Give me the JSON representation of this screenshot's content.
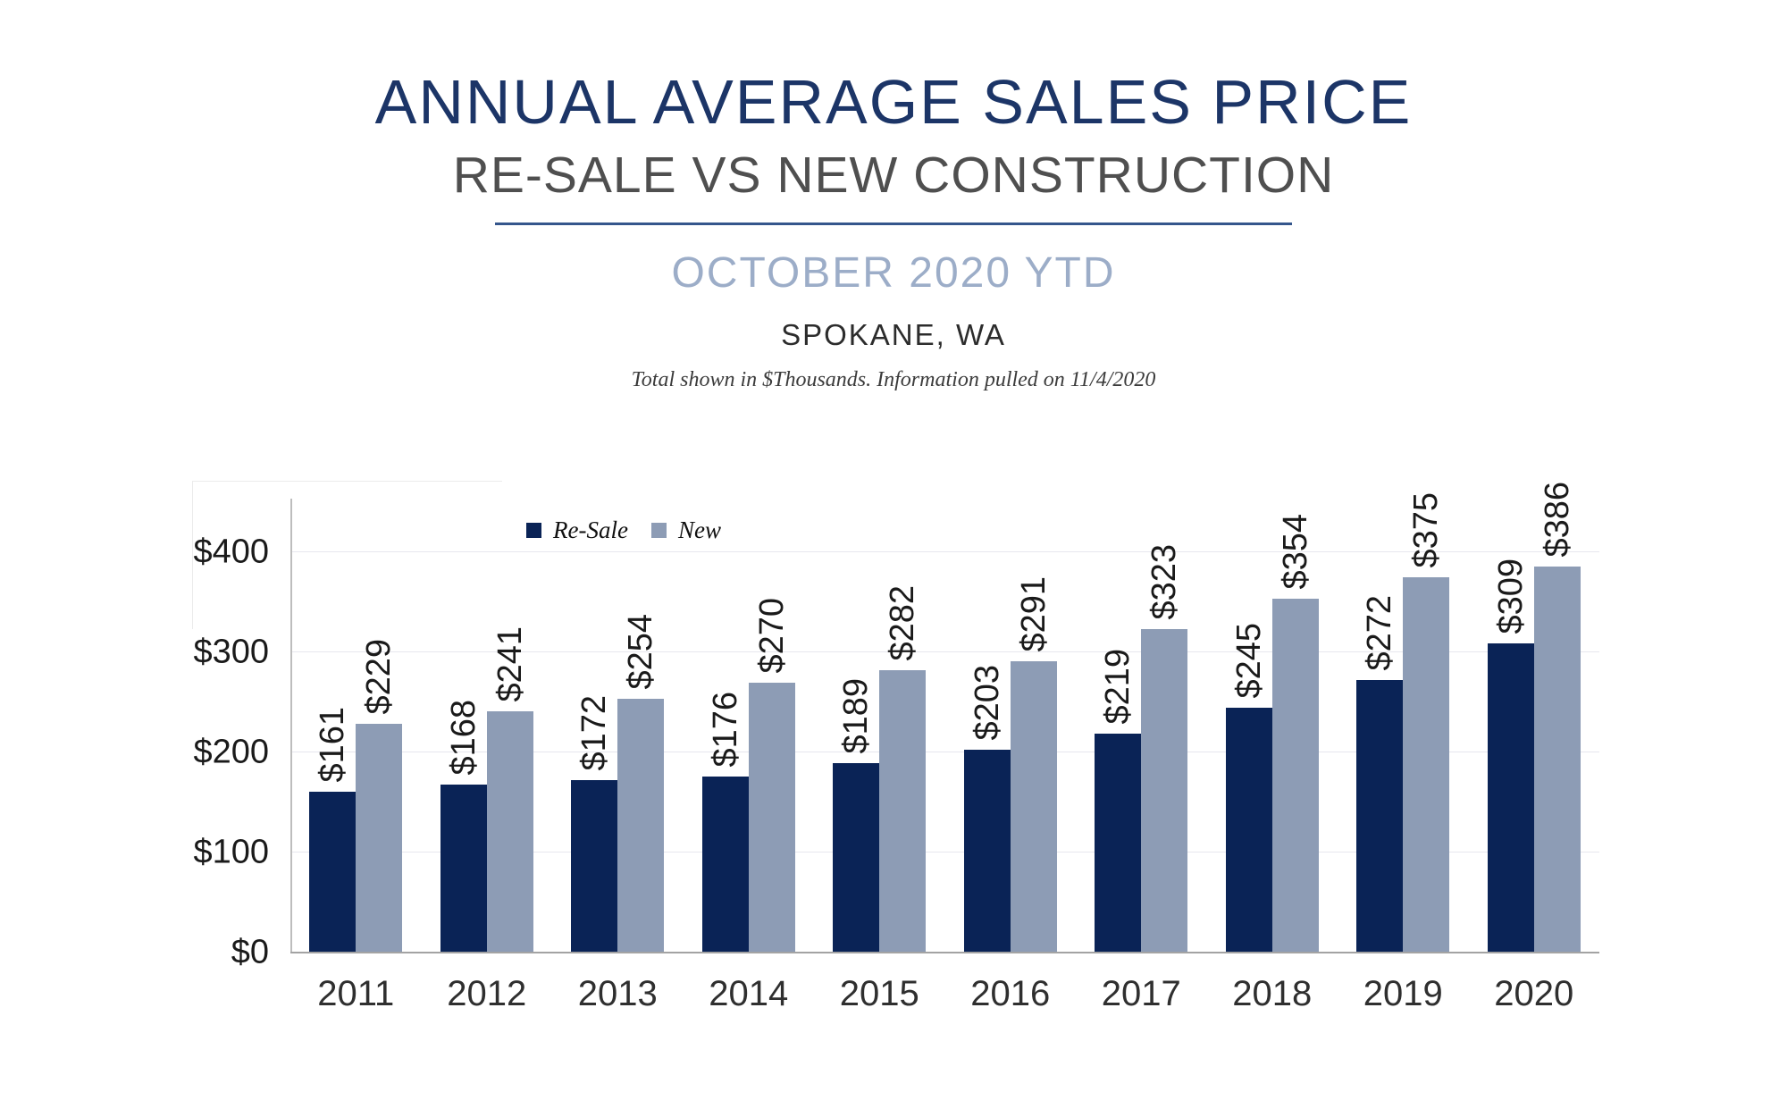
{
  "header": {
    "title": "ANNUAL AVERAGE SALES PRICE",
    "subtitle": "RE-SALE VS NEW CONSTRUCTION",
    "period": "OCTOBER 2020 YTD",
    "location": "SPOKANE, WA",
    "footnote": "Total shown in $Thousands. Information pulled on 11/4/2020"
  },
  "chart_data": {
    "type": "bar",
    "title": "ANNUAL AVERAGE SALES PRICE — RE-SALE VS NEW CONSTRUCTION",
    "categories": [
      "2011",
      "2012",
      "2013",
      "2014",
      "2015",
      "2016",
      "2017",
      "2018",
      "2019",
      "2020"
    ],
    "series": [
      {
        "name": "Re-Sale",
        "color": "#0a2356",
        "values": [
          161,
          168,
          172,
          176,
          189,
          203,
          219,
          245,
          272,
          309
        ]
      },
      {
        "name": "New",
        "color": "#8d9cb5",
        "values": [
          229,
          241,
          254,
          270,
          282,
          291,
          323,
          354,
          375,
          386
        ]
      }
    ],
    "value_prefix": "$",
    "units": "$Thousands",
    "ylim": [
      0,
      453
    ],
    "yticks": [
      0,
      100,
      200,
      300,
      400
    ],
    "ytick_labels": [
      "$0",
      "$100",
      "$200",
      "$300",
      "$400"
    ],
    "grid": true,
    "legend_position": "top-left-inside",
    "bar_label_rotation": -90,
    "colors": {
      "title": "#1c3567",
      "divider": "#35568c",
      "period": "#9cadc8",
      "gridline": "#e7e7ee"
    }
  }
}
